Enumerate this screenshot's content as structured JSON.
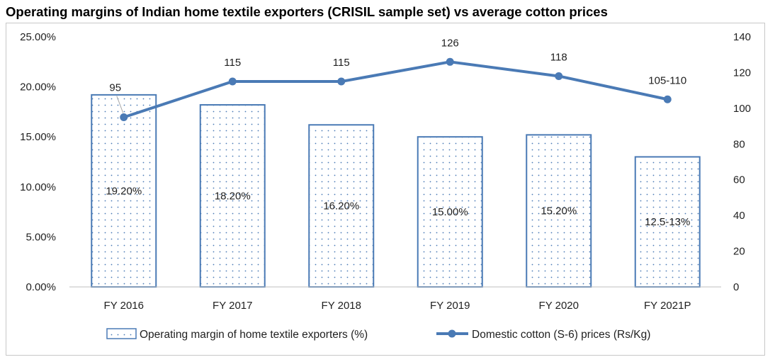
{
  "title": "Operating margins of Indian home textile exporters (CRISIL sample set) vs average cotton prices",
  "chart_data": {
    "type": "bar+line",
    "categories": [
      "FY 2016",
      "FY 2017",
      "FY 2018",
      "FY 2019",
      "FY 2020",
      "FY 2021P"
    ],
    "series": [
      {
        "name": "Operating margin of home textile exporters (%)",
        "type": "bar",
        "axis": "left",
        "values": [
          19.2,
          18.2,
          16.2,
          15.0,
          15.2,
          13.0
        ],
        "labels": [
          "19.20%",
          "18.20%",
          "16.20%",
          "15.00%",
          "15.20%",
          "12.5-13%"
        ],
        "color": "#4a7ab5"
      },
      {
        "name": "Domestic cotton (S-6) prices (Rs/Kg)",
        "type": "line",
        "axis": "right",
        "values": [
          95,
          115,
          115,
          126,
          118,
          105
        ],
        "labels": [
          "95",
          "115",
          "115",
          "126",
          "118",
          "105-110"
        ],
        "color": "#4a7ab5"
      }
    ],
    "y_left": {
      "min": 0,
      "max": 25,
      "ticks": [
        "0.00%",
        "5.00%",
        "10.00%",
        "15.00%",
        "20.00%",
        "25.00%"
      ]
    },
    "y_right": {
      "min": 0,
      "max": 140,
      "ticks": [
        "0",
        "20",
        "40",
        "60",
        "80",
        "100",
        "120",
        "140"
      ]
    },
    "grid": false,
    "legend": "bottom"
  }
}
